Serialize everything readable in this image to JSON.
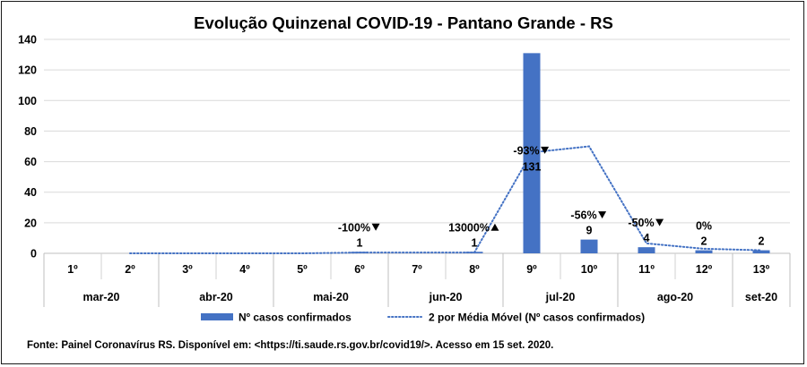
{
  "chart_data": {
    "type": "bar",
    "title": "Evolução Quinzenal COVID-19 - Pantano Grande - RS",
    "categories": [
      "1º",
      "2º",
      "3º",
      "4º",
      "5º",
      "6º",
      "7º",
      "8º",
      "9º",
      "10º",
      "11º",
      "12º",
      "13º"
    ],
    "groups": [
      {
        "label": "mar-20",
        "span": 2
      },
      {
        "label": "abr-20",
        "span": 2
      },
      {
        "label": "mai-20",
        "span": 2
      },
      {
        "label": "jun-20",
        "span": 2
      },
      {
        "label": "jul-20",
        "span": 2
      },
      {
        "label": "ago-20",
        "span": 2
      },
      {
        "label": "set-20",
        "span": 1
      }
    ],
    "series": [
      {
        "name": "Nº casos confirmados",
        "type": "bar",
        "color": "#4472C4",
        "values": [
          0,
          0,
          0,
          0,
          0,
          1,
          0,
          1,
          131,
          9,
          4,
          2,
          2
        ]
      },
      {
        "name": "2 por Média Móvel (Nº casos confirmados)",
        "type": "line",
        "style": "dotted",
        "color": "#4472C4",
        "values": [
          null,
          0,
          0,
          0,
          0,
          0.5,
          0.5,
          0.5,
          66,
          70,
          6.5,
          3,
          2
        ]
      }
    ],
    "data_labels": [
      "",
      "",
      "",
      "",
      "",
      "1",
      "",
      "1",
      "131",
      "9",
      "4",
      "2",
      "2"
    ],
    "change_labels": [
      {
        "index": 5,
        "text": "-100%",
        "arrow": "down"
      },
      {
        "index": 7,
        "text": "13000%",
        "arrow": "up"
      },
      {
        "index": 8,
        "text": "-93%",
        "arrow": "down"
      },
      {
        "index": 9,
        "text": "-56%",
        "arrow": "down"
      },
      {
        "index": 10,
        "text": "-50%",
        "arrow": "down"
      },
      {
        "index": 11,
        "text": "0%",
        "arrow": ""
      }
    ],
    "ylim": [
      0,
      140
    ],
    "yticks": [
      0,
      20,
      40,
      60,
      80,
      100,
      120,
      140
    ],
    "grid": true,
    "legend": "bottom"
  },
  "source_note": "Fonte: Painel Coronavírus RS. Disponível em: <https://ti.saude.rs.gov.br/covid19/>. Acesso em 15 set. 2020."
}
